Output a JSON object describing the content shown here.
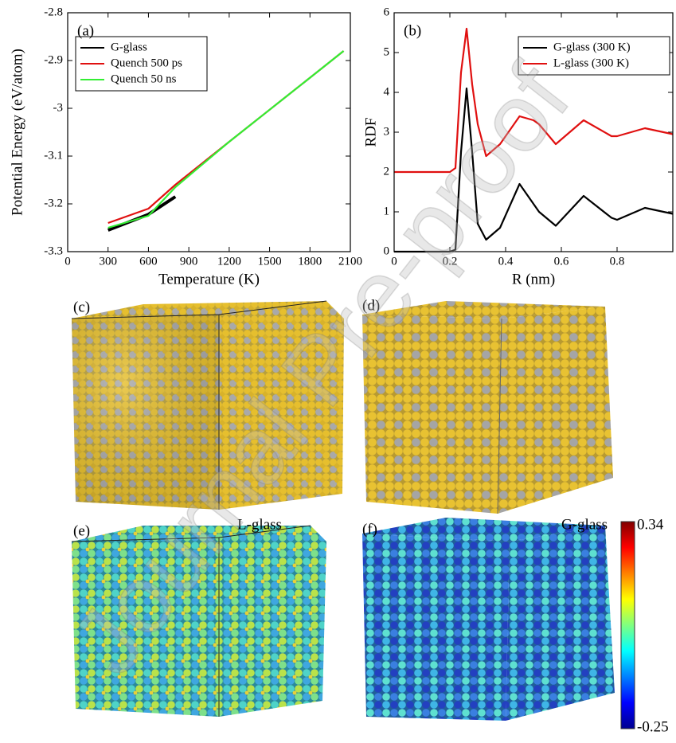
{
  "chart_data": [
    {
      "type": "line",
      "annotation": "(a)",
      "x_label": "Temperature (K)",
      "y_label": "Potential Energy (eV/atom)",
      "x": [
        300,
        600,
        800,
        1200,
        1500,
        1800,
        2050
      ],
      "series": [
        {
          "name": "G-glass",
          "color": "#000000",
          "values": [
            -3.255,
            -3.222,
            -3.185,
            null,
            null,
            null,
            null
          ]
        },
        {
          "name": "Quench 500 ps",
          "color": "#e01010",
          "values": [
            -3.24,
            -3.21,
            -3.16,
            -3.07,
            -3.003,
            -2.936,
            -2.88
          ]
        },
        {
          "name": "Quench 50 ns",
          "color": "#33ee33",
          "values": [
            -3.25,
            -3.225,
            -3.165,
            -3.07,
            -3.003,
            -2.936,
            -2.88
          ]
        }
      ],
      "xlim": [
        0,
        2100
      ],
      "xticks": [
        0,
        300,
        600,
        900,
        1200,
        1500,
        1800,
        2100
      ],
      "ylim": [
        -3.3,
        -2.8
      ],
      "yticks": [
        -3.3,
        -3.2,
        -3.1,
        -3,
        -2.9,
        -2.8
      ],
      "legend": "upper left"
    },
    {
      "type": "line",
      "annotation": "(b)",
      "x_label": "R (nm)",
      "y_label": "RDF",
      "x": [
        0,
        0.2,
        0.22,
        0.24,
        0.26,
        0.28,
        0.3,
        0.33,
        0.38,
        0.45,
        0.5,
        0.52,
        0.58,
        0.68,
        0.78,
        0.8,
        0.9,
        1.0
      ],
      "series": [
        {
          "name": "G-glass (300 K)",
          "color": "#000000",
          "values": [
            0,
            0,
            0.05,
            2.5,
            4.1,
            2.5,
            0.7,
            0.3,
            0.6,
            1.7,
            1.2,
            1.0,
            0.65,
            1.4,
            0.85,
            0.8,
            1.1,
            0.95
          ]
        },
        {
          "name": "L-glass (300 K)",
          "color": "#e01010",
          "values": [
            2,
            2,
            2.1,
            4.5,
            5.6,
            4.2,
            3.2,
            2.4,
            2.7,
            3.4,
            3.3,
            3.2,
            2.7,
            3.3,
            2.9,
            2.9,
            3.1,
            2.95
          ]
        }
      ],
      "xlim": [
        0,
        1.0
      ],
      "xticks": [
        0,
        0.2,
        0.4,
        0.6,
        0.8
      ],
      "ylim": [
        0,
        6
      ],
      "yticks": [
        0,
        1,
        2,
        3,
        4,
        5,
        6
      ],
      "legend": "upper right"
    }
  ],
  "panels": {
    "c": "(c)",
    "d": "(d)",
    "e": "(e)",
    "f": "(f)"
  },
  "image_labels": {
    "e": "L-glass",
    "f": "G-glass"
  },
  "colorbar": {
    "max": 0.34,
    "min": -0.25
  },
  "watermark": "Journal Pre-proof"
}
